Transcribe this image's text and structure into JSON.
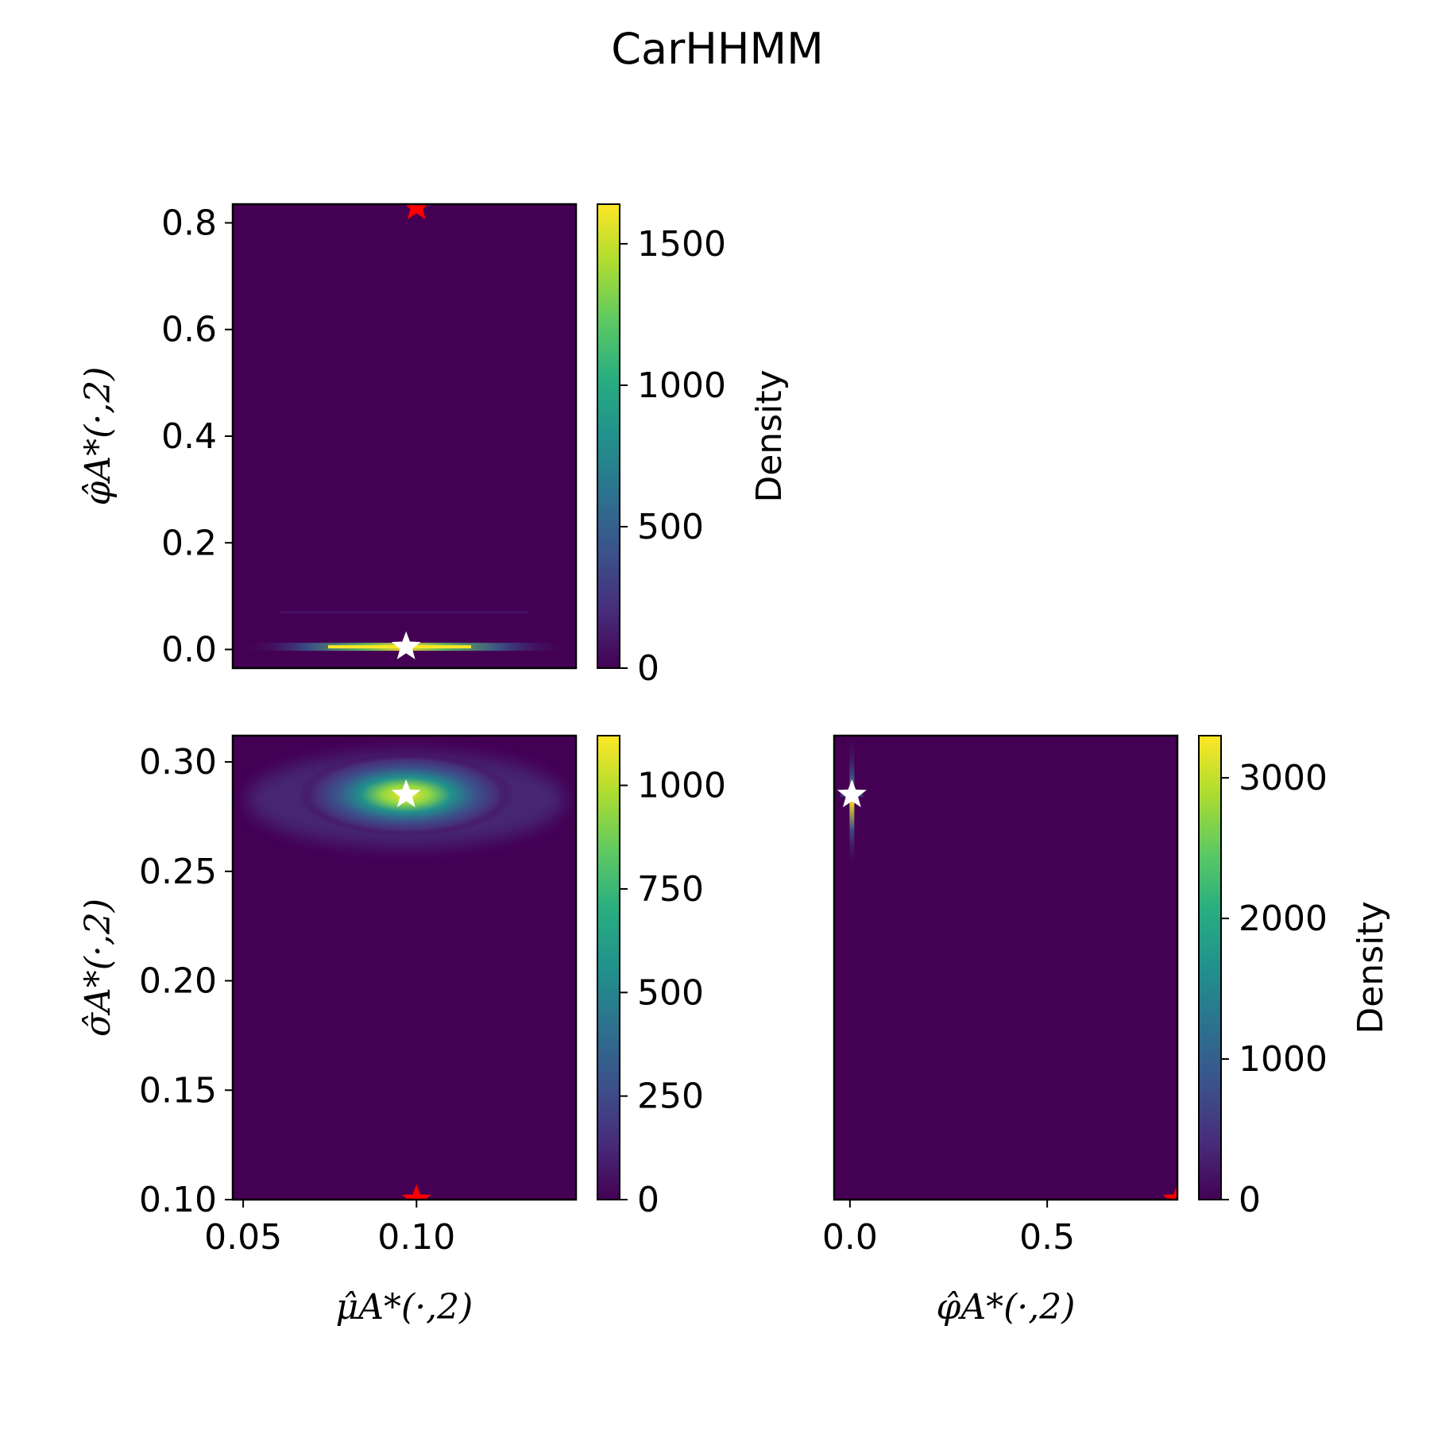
{
  "title": "CarHHMM",
  "chart_data": [
    {
      "type": "heatmap",
      "panel": "top-left",
      "xlabel": "",
      "ylabel": "φ̂A*(·,2)",
      "xlim": [
        0.047,
        0.146
      ],
      "ylim": [
        -0.035,
        0.835
      ],
      "yticks": [
        "0.0",
        "0.2",
        "0.4",
        "0.6",
        "0.8"
      ],
      "ytick_values": [
        0.0,
        0.2,
        0.4,
        0.6,
        0.8
      ],
      "colorbar": {
        "label": "Density",
        "max": 1640,
        "ticks": [
          "0",
          "500",
          "1000",
          "1500"
        ],
        "tick_values": [
          0,
          500,
          1000,
          1500
        ]
      },
      "peak": {
        "x": 0.097,
        "y": 0.005,
        "density": 1640
      },
      "markers": [
        {
          "symbol": "star",
          "color": "#ffffff",
          "x": 0.097,
          "y": 0.005
        },
        {
          "symbol": "star",
          "color": "#ff0000",
          "x": 0.1,
          "y": 0.83
        }
      ]
    },
    {
      "type": "heatmap",
      "panel": "bottom-left",
      "xlabel": "μ̂A*(·,2)",
      "ylabel": "σ̂A*(·,2)",
      "xlim": [
        0.047,
        0.146
      ],
      "ylim": [
        0.1,
        0.312
      ],
      "xticks": [
        "0.05",
        "0.10"
      ],
      "xtick_values": [
        0.05,
        0.1
      ],
      "yticks": [
        "0.10",
        "0.15",
        "0.20",
        "0.25",
        "0.30"
      ],
      "ytick_values": [
        0.1,
        0.15,
        0.2,
        0.25,
        0.3
      ],
      "colorbar": {
        "label": "",
        "max": 1120,
        "ticks": [
          "0",
          "250",
          "500",
          "750",
          "1000"
        ],
        "tick_values": [
          0,
          250,
          500,
          750,
          1000
        ]
      },
      "peak": {
        "x": 0.097,
        "y": 0.285,
        "density": 1120
      },
      "markers": [
        {
          "symbol": "star",
          "color": "#ffffff",
          "x": 0.097,
          "y": 0.285
        },
        {
          "symbol": "star",
          "color": "#ff0000",
          "x": 0.1,
          "y": 0.1
        }
      ]
    },
    {
      "type": "heatmap",
      "panel": "bottom-right",
      "xlabel": "φ̂A*(·,2)",
      "ylabel": "",
      "xlim": [
        -0.04,
        0.83
      ],
      "ylim": [
        0.1,
        0.312
      ],
      "xticks": [
        "0.0",
        "0.5"
      ],
      "xtick_values": [
        0.0,
        0.5
      ],
      "colorbar": {
        "label": "Density",
        "max": 3300,
        "ticks": [
          "0",
          "1000",
          "2000",
          "3000"
        ],
        "tick_values": [
          0,
          1000,
          2000,
          3000
        ]
      },
      "peak": {
        "x": 0.005,
        "y": 0.285,
        "density": 3300
      },
      "markers": [
        {
          "symbol": "star",
          "color": "#ffffff",
          "x": 0.005,
          "y": 0.285
        },
        {
          "symbol": "star",
          "color": "#ff0000",
          "x": 0.83,
          "y": 0.1
        }
      ]
    }
  ]
}
